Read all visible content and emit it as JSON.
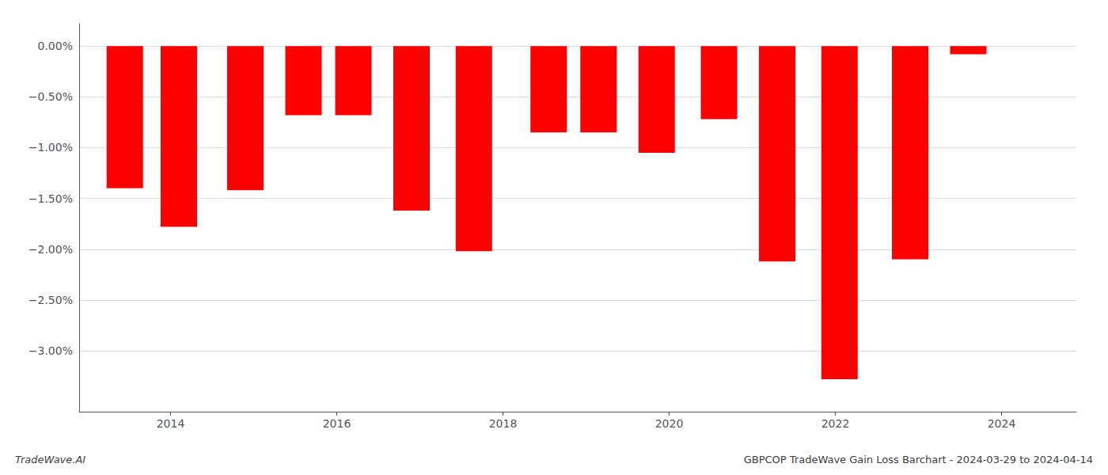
{
  "chart_data": {
    "type": "bar",
    "x": [
      2013.45,
      2014.1,
      2014.9,
      2015.6,
      2016.2,
      2016.9,
      2017.65,
      2018.55,
      2019.15,
      2019.85,
      2020.6,
      2021.3,
      2022.05,
      2022.9,
      2023.6
    ],
    "values": [
      -1.4,
      -1.78,
      -1.42,
      -0.68,
      -0.68,
      -1.62,
      -2.02,
      -0.85,
      -0.85,
      -1.05,
      -0.72,
      -2.12,
      -3.28,
      -2.1,
      -0.08
    ],
    "color": "#ff0000",
    "xlim": [
      2012.9,
      2024.9
    ],
    "xticks": [
      2014,
      2016,
      2018,
      2020,
      2022,
      2024
    ],
    "ylim": [
      -3.6,
      0.22
    ],
    "yticks": [
      {
        "value": 0.0,
        "label": "0.00%"
      },
      {
        "value": -0.5,
        "label": "−0.50%"
      },
      {
        "value": -1.0,
        "label": "−1.00%"
      },
      {
        "value": -1.5,
        "label": "−1.50%"
      },
      {
        "value": -2.0,
        "label": "−2.00%"
      },
      {
        "value": -2.5,
        "label": "−2.50%"
      },
      {
        "value": -3.0,
        "label": "−3.00%"
      }
    ],
    "grid": true,
    "annotations": [
      "TradeWave.AI",
      "GBPCOP TradeWave Gain Loss Barchart - 2024-03-29 to 2024-04-14"
    ]
  }
}
